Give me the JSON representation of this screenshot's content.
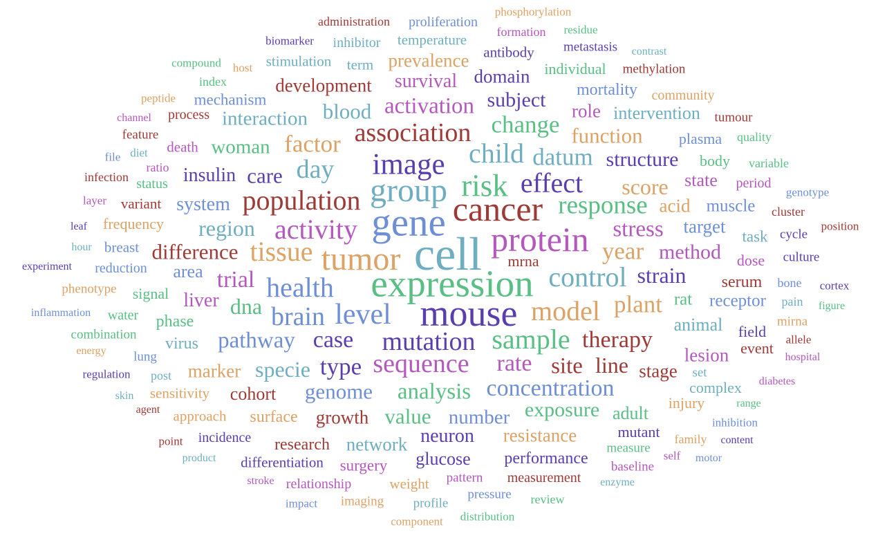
{
  "palette": {
    "red": "#9e3a36",
    "blue": "#6e8fd6",
    "orange": "#dca266",
    "green": "#5abf84",
    "purple": "#b458be",
    "teal": "#6faec0",
    "indigo": "#5a3eb0"
  },
  "words": [
    {
      "text": "administration",
      "color": "red"
    },
    {
      "text": "proliferation",
      "color": "blue"
    },
    {
      "text": "phosphorylation",
      "color": "orange"
    },
    {
      "text": "biomarker",
      "color": "indigo"
    },
    {
      "text": "inhibitor",
      "color": "teal"
    },
    {
      "text": "temperature",
      "color": "teal"
    },
    {
      "text": "formation",
      "color": "purple"
    },
    {
      "text": "residue",
      "color": "green"
    },
    {
      "text": "antibody",
      "color": "indigo"
    },
    {
      "text": "metastasis",
      "color": "indigo"
    },
    {
      "text": "contrast",
      "color": "teal"
    },
    {
      "text": "compound",
      "color": "green"
    },
    {
      "text": "host",
      "color": "orange"
    },
    {
      "text": "stimulation",
      "color": "teal"
    },
    {
      "text": "term",
      "color": "teal"
    },
    {
      "text": "prevalence",
      "color": "orange"
    },
    {
      "text": "individual",
      "color": "green"
    },
    {
      "text": "methylation",
      "color": "red"
    },
    {
      "text": "domain",
      "color": "indigo"
    },
    {
      "text": "index",
      "color": "green"
    },
    {
      "text": "development",
      "color": "red"
    },
    {
      "text": "survival",
      "color": "purple"
    },
    {
      "text": "mortality",
      "color": "blue"
    },
    {
      "text": "community",
      "color": "orange"
    },
    {
      "text": "peptide",
      "color": "orange"
    },
    {
      "text": "mechanism",
      "color": "blue"
    },
    {
      "text": "subject",
      "color": "indigo"
    },
    {
      "text": "activation",
      "color": "purple"
    },
    {
      "text": "role",
      "color": "purple"
    },
    {
      "text": "intervention",
      "color": "teal"
    },
    {
      "text": "channel",
      "color": "purple"
    },
    {
      "text": "process",
      "color": "red"
    },
    {
      "text": "interaction",
      "color": "teal"
    },
    {
      "text": "blood",
      "color": "teal"
    },
    {
      "text": "change",
      "color": "green"
    },
    {
      "text": "tumour",
      "color": "red"
    },
    {
      "text": "feature",
      "color": "red"
    },
    {
      "text": "association",
      "color": "red"
    },
    {
      "text": "function",
      "color": "orange"
    },
    {
      "text": "plasma",
      "color": "blue"
    },
    {
      "text": "quality",
      "color": "green"
    },
    {
      "text": "file",
      "color": "blue"
    },
    {
      "text": "diet",
      "color": "teal"
    },
    {
      "text": "death",
      "color": "purple"
    },
    {
      "text": "woman",
      "color": "green"
    },
    {
      "text": "factor",
      "color": "orange"
    },
    {
      "text": "child",
      "color": "teal"
    },
    {
      "text": "datum",
      "color": "teal"
    },
    {
      "text": "structure",
      "color": "indigo"
    },
    {
      "text": "body",
      "color": "green"
    },
    {
      "text": "variable",
      "color": "green"
    },
    {
      "text": "ratio",
      "color": "purple"
    },
    {
      "text": "infection",
      "color": "red"
    },
    {
      "text": "image",
      "color": "indigo"
    },
    {
      "text": "insulin",
      "color": "indigo"
    },
    {
      "text": "care",
      "color": "indigo"
    },
    {
      "text": "day",
      "color": "teal"
    },
    {
      "text": "status",
      "color": "green"
    },
    {
      "text": "risk",
      "color": "green"
    },
    {
      "text": "effect",
      "color": "indigo"
    },
    {
      "text": "state",
      "color": "purple"
    },
    {
      "text": "period",
      "color": "purple"
    },
    {
      "text": "genotype",
      "color": "blue"
    },
    {
      "text": "score",
      "color": "orange"
    },
    {
      "text": "group",
      "color": "teal"
    },
    {
      "text": "layer",
      "color": "purple"
    },
    {
      "text": "variant",
      "color": "red"
    },
    {
      "text": "system",
      "color": "blue"
    },
    {
      "text": "population",
      "color": "red"
    },
    {
      "text": "cancer",
      "color": "red"
    },
    {
      "text": "response",
      "color": "green"
    },
    {
      "text": "acid",
      "color": "orange"
    },
    {
      "text": "muscle",
      "color": "blue"
    },
    {
      "text": "cluster",
      "color": "red"
    },
    {
      "text": "leaf",
      "color": "indigo"
    },
    {
      "text": "frequency",
      "color": "orange"
    },
    {
      "text": "gene",
      "color": "blue"
    },
    {
      "text": "target",
      "color": "blue"
    },
    {
      "text": "region",
      "color": "teal"
    },
    {
      "text": "activity",
      "color": "purple"
    },
    {
      "text": "stress",
      "color": "purple"
    },
    {
      "text": "position",
      "color": "red"
    },
    {
      "text": "task",
      "color": "teal"
    },
    {
      "text": "cycle",
      "color": "indigo"
    },
    {
      "text": "hour",
      "color": "teal"
    },
    {
      "text": "breast",
      "color": "blue"
    },
    {
      "text": "protein",
      "color": "purple"
    },
    {
      "text": "difference",
      "color": "red"
    },
    {
      "text": "tissue",
      "color": "orange"
    },
    {
      "text": "cell",
      "color": "teal"
    },
    {
      "text": "year",
      "color": "orange"
    },
    {
      "text": "method",
      "color": "purple"
    },
    {
      "text": "dose",
      "color": "purple"
    },
    {
      "text": "culture",
      "color": "indigo"
    },
    {
      "text": "experiment",
      "color": "indigo"
    },
    {
      "text": "tumor",
      "color": "orange"
    },
    {
      "text": "mrna",
      "color": "red"
    },
    {
      "text": "reduction",
      "color": "blue"
    },
    {
      "text": "area",
      "color": "blue"
    },
    {
      "text": "strain",
      "color": "indigo"
    },
    {
      "text": "control",
      "color": "teal"
    },
    {
      "text": "serum",
      "color": "red"
    },
    {
      "text": "bone",
      "color": "blue"
    },
    {
      "text": "cortex",
      "color": "indigo"
    },
    {
      "text": "phenotype",
      "color": "orange"
    },
    {
      "text": "trial",
      "color": "purple"
    },
    {
      "text": "expression",
      "color": "green"
    },
    {
      "text": "signal",
      "color": "green"
    },
    {
      "text": "health",
      "color": "blue"
    },
    {
      "text": "rat",
      "color": "green"
    },
    {
      "text": "receptor",
      "color": "blue"
    },
    {
      "text": "pain",
      "color": "teal"
    },
    {
      "text": "figure",
      "color": "green"
    },
    {
      "text": "liver",
      "color": "purple"
    },
    {
      "text": "plant",
      "color": "orange"
    },
    {
      "text": "inflammation",
      "color": "blue"
    },
    {
      "text": "dna",
      "color": "green"
    },
    {
      "text": "model",
      "color": "orange"
    },
    {
      "text": "water",
      "color": "green"
    },
    {
      "text": "brain",
      "color": "blue"
    },
    {
      "text": "level",
      "color": "blue"
    },
    {
      "text": "mouse",
      "color": "indigo"
    },
    {
      "text": "animal",
      "color": "teal"
    },
    {
      "text": "mirna",
      "color": "orange"
    },
    {
      "text": "phase",
      "color": "green"
    },
    {
      "text": "field",
      "color": "indigo"
    },
    {
      "text": "combination",
      "color": "green"
    },
    {
      "text": "allele",
      "color": "red"
    },
    {
      "text": "virus",
      "color": "teal"
    },
    {
      "text": "case",
      "color": "indigo"
    },
    {
      "text": "pathway",
      "color": "blue"
    },
    {
      "text": "sample",
      "color": "green"
    },
    {
      "text": "therapy",
      "color": "red"
    },
    {
      "text": "energy",
      "color": "orange"
    },
    {
      "text": "mutation",
      "color": "indigo"
    },
    {
      "text": "event",
      "color": "red"
    },
    {
      "text": "lung",
      "color": "blue"
    },
    {
      "text": "hospital",
      "color": "purple"
    },
    {
      "text": "lesion",
      "color": "purple"
    },
    {
      "text": "regulation",
      "color": "indigo"
    },
    {
      "text": "type",
      "color": "indigo"
    },
    {
      "text": "specie",
      "color": "teal"
    },
    {
      "text": "sequence",
      "color": "purple"
    },
    {
      "text": "rate",
      "color": "purple"
    },
    {
      "text": "site",
      "color": "red"
    },
    {
      "text": "line",
      "color": "red"
    },
    {
      "text": "stage",
      "color": "red"
    },
    {
      "text": "post",
      "color": "teal"
    },
    {
      "text": "marker",
      "color": "orange"
    },
    {
      "text": "set",
      "color": "teal"
    },
    {
      "text": "concentration",
      "color": "blue"
    },
    {
      "text": "complex",
      "color": "teal"
    },
    {
      "text": "diabetes",
      "color": "purple"
    },
    {
      "text": "skin",
      "color": "teal"
    },
    {
      "text": "sensitivity",
      "color": "orange"
    },
    {
      "text": "cohort",
      "color": "red"
    },
    {
      "text": "genome",
      "color": "blue"
    },
    {
      "text": "analysis",
      "color": "green"
    },
    {
      "text": "injury",
      "color": "orange"
    },
    {
      "text": "range",
      "color": "green"
    },
    {
      "text": "agent",
      "color": "red"
    },
    {
      "text": "approach",
      "color": "orange"
    },
    {
      "text": "surface",
      "color": "orange"
    },
    {
      "text": "growth",
      "color": "red"
    },
    {
      "text": "value",
      "color": "green"
    },
    {
      "text": "number",
      "color": "blue"
    },
    {
      "text": "exposure",
      "color": "green"
    },
    {
      "text": "adult",
      "color": "green"
    },
    {
      "text": "inhibition",
      "color": "blue"
    },
    {
      "text": "point",
      "color": "red"
    },
    {
      "text": "incidence",
      "color": "indigo"
    },
    {
      "text": "research",
      "color": "red"
    },
    {
      "text": "network",
      "color": "teal"
    },
    {
      "text": "neuron",
      "color": "indigo"
    },
    {
      "text": "resistance",
      "color": "orange"
    },
    {
      "text": "mutant",
      "color": "indigo"
    },
    {
      "text": "family",
      "color": "orange"
    },
    {
      "text": "content",
      "color": "indigo"
    },
    {
      "text": "measure",
      "color": "green"
    },
    {
      "text": "product",
      "color": "teal"
    },
    {
      "text": "differentiation",
      "color": "indigo"
    },
    {
      "text": "surgery",
      "color": "purple"
    },
    {
      "text": "glucose",
      "color": "indigo"
    },
    {
      "text": "performance",
      "color": "indigo"
    },
    {
      "text": "self",
      "color": "purple"
    },
    {
      "text": "motor",
      "color": "blue"
    },
    {
      "text": "baseline",
      "color": "purple"
    },
    {
      "text": "stroke",
      "color": "purple"
    },
    {
      "text": "relationship",
      "color": "purple"
    },
    {
      "text": "weight",
      "color": "orange"
    },
    {
      "text": "pattern",
      "color": "purple"
    },
    {
      "text": "measurement",
      "color": "red"
    },
    {
      "text": "enzyme",
      "color": "teal"
    },
    {
      "text": "impact",
      "color": "blue"
    },
    {
      "text": "imaging",
      "color": "orange"
    },
    {
      "text": "profile",
      "color": "teal"
    },
    {
      "text": "pressure",
      "color": "blue"
    },
    {
      "text": "review",
      "color": "green"
    },
    {
      "text": "component",
      "color": "orange"
    },
    {
      "text": "distribution",
      "color": "green"
    }
  ]
}
